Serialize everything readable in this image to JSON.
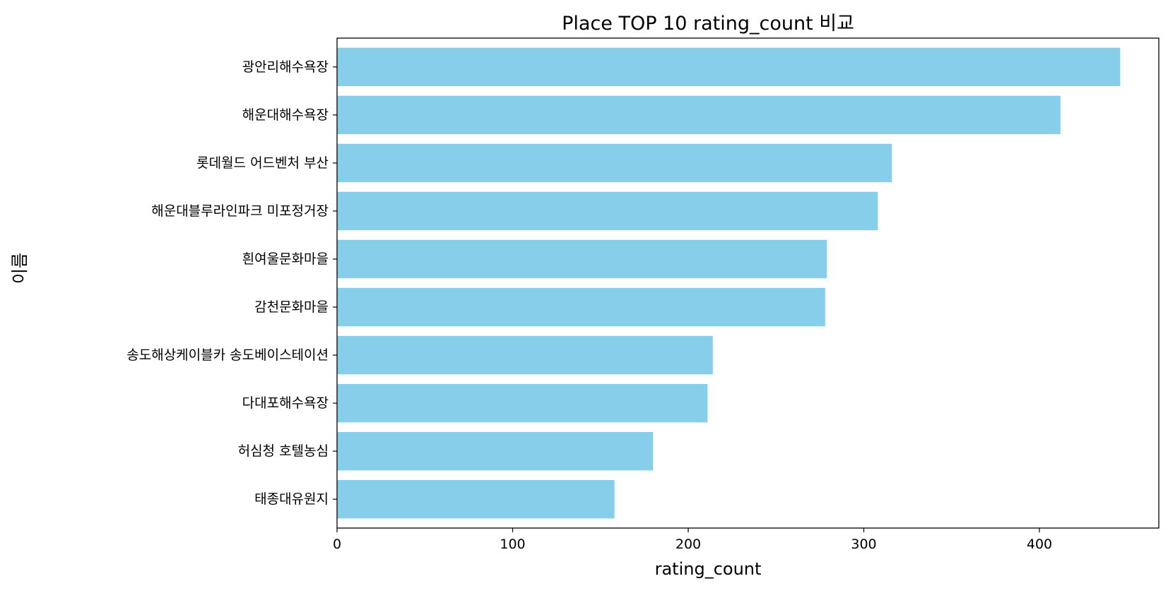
{
  "chart_data": {
    "type": "bar",
    "orientation": "horizontal",
    "title": "Place TOP 10 rating_count 비교",
    "xlabel": "rating_count",
    "ylabel": "이름",
    "categories": [
      "광안리해수욕장",
      "해운대해수욕장",
      "롯데월드 어드벤처 부산",
      "해운대블루라인파크 미포정거장",
      "흰여울문화마을",
      "감천문화마을",
      "송도해상케이블카 송도베이스테이션",
      "다대포해수욕장",
      "허심청 호텔농심",
      "태종대유원지"
    ],
    "values": [
      446,
      412,
      316,
      308,
      279,
      278,
      214,
      211,
      180,
      158
    ],
    "xlim": [
      0,
      468
    ],
    "xticks": [
      0,
      100,
      200,
      300,
      400
    ],
    "grid": false,
    "bar_color": "#87CEEB"
  }
}
